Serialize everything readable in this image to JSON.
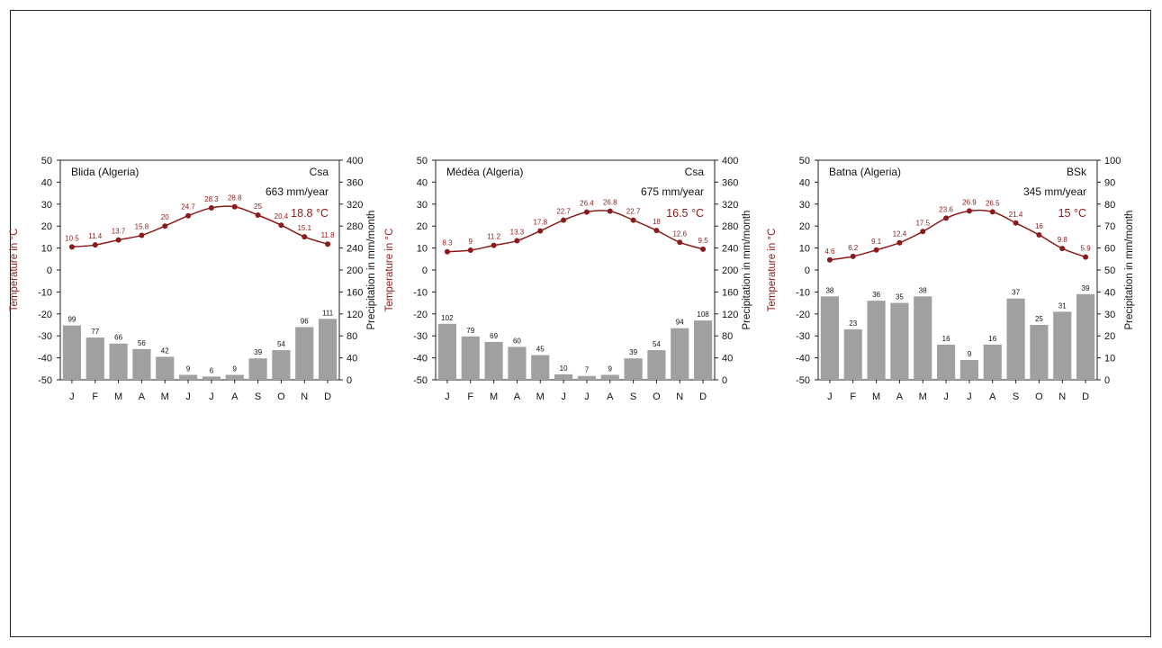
{
  "colors": {
    "temperature": "#8b1a1a",
    "precipitation_bars": "#a0a0a0",
    "axis": "#222222",
    "text": "#111111"
  },
  "chart_data": [
    {
      "type": "bar",
      "title": "Blida (Algeria)",
      "climate_class": "Csa",
      "annual_precipitation": "663 mm/year",
      "mean_temperature": "18.8 °C",
      "categories": [
        "J",
        "F",
        "M",
        "A",
        "M",
        "J",
        "J",
        "A",
        "S",
        "O",
        "N",
        "D"
      ],
      "ylabel": "Temperature in °C",
      "y2label": "Precipitation in mm/month",
      "ylim": [
        -50,
        50
      ],
      "y2lim": [
        0,
        400
      ],
      "yticks": [
        -50,
        -40,
        -30,
        -20,
        -10,
        0,
        10,
        20,
        30,
        40,
        50
      ],
      "y2ticks": [
        0,
        40,
        80,
        120,
        160,
        200,
        240,
        280,
        320,
        360,
        400
      ],
      "series": [
        {
          "type": "line",
          "axis": "left",
          "values": [
            10.5,
            11.4,
            13.7,
            15.8,
            20,
            24.7,
            28.3,
            28.8,
            25,
            20.4,
            15.1,
            11.8
          ]
        },
        {
          "type": "bar",
          "axis": "right",
          "values": [
            99,
            77,
            66,
            56,
            42,
            9,
            6,
            9,
            39,
            54,
            96,
            111
          ]
        }
      ]
    },
    {
      "type": "bar",
      "title": "Médéa (Algeria)",
      "climate_class": "Csa",
      "annual_precipitation": "675 mm/year",
      "mean_temperature": "16.5 °C",
      "categories": [
        "J",
        "F",
        "M",
        "A",
        "M",
        "J",
        "J",
        "A",
        "S",
        "O",
        "N",
        "D"
      ],
      "ylabel": "Temperature in °C",
      "y2label": "Precipitation in mm/month",
      "ylim": [
        -50,
        50
      ],
      "y2lim": [
        0,
        400
      ],
      "yticks": [
        -50,
        -40,
        -30,
        -20,
        -10,
        0,
        10,
        20,
        30,
        40,
        50
      ],
      "y2ticks": [
        0,
        40,
        80,
        120,
        160,
        200,
        240,
        280,
        320,
        360,
        400
      ],
      "series": [
        {
          "type": "line",
          "axis": "left",
          "values": [
            8.3,
            9,
            11.2,
            13.3,
            17.8,
            22.7,
            26.4,
            26.8,
            22.7,
            18,
            12.6,
            9.5
          ]
        },
        {
          "type": "bar",
          "axis": "right",
          "values": [
            102,
            79,
            69,
            60,
            45,
            10,
            7,
            9,
            39,
            54,
            94,
            108
          ]
        }
      ]
    },
    {
      "type": "bar",
      "title": "Batna (Algeria)",
      "climate_class": "BSk",
      "annual_precipitation": "345 mm/year",
      "mean_temperature": "15 °C",
      "categories": [
        "J",
        "F",
        "M",
        "A",
        "M",
        "J",
        "J",
        "A",
        "S",
        "O",
        "N",
        "D"
      ],
      "ylabel": "Temperature in °C",
      "y2label": "Precipitation in mm/month",
      "ylim": [
        -50,
        50
      ],
      "y2lim": [
        0,
        100
      ],
      "yticks": [
        -50,
        -40,
        -30,
        -20,
        -10,
        0,
        10,
        20,
        30,
        40,
        50
      ],
      "y2ticks": [
        0,
        10,
        20,
        30,
        40,
        50,
        60,
        70,
        80,
        90,
        100
      ],
      "series": [
        {
          "type": "line",
          "axis": "left",
          "values": [
            4.6,
            6.2,
            9.1,
            12.4,
            17.5,
            23.6,
            26.9,
            26.5,
            21.4,
            16,
            9.8,
            5.9
          ]
        },
        {
          "type": "bar",
          "axis": "right",
          "values": [
            38,
            23,
            36,
            35,
            38,
            16,
            9,
            16,
            37,
            25,
            31,
            39
          ]
        }
      ]
    }
  ]
}
